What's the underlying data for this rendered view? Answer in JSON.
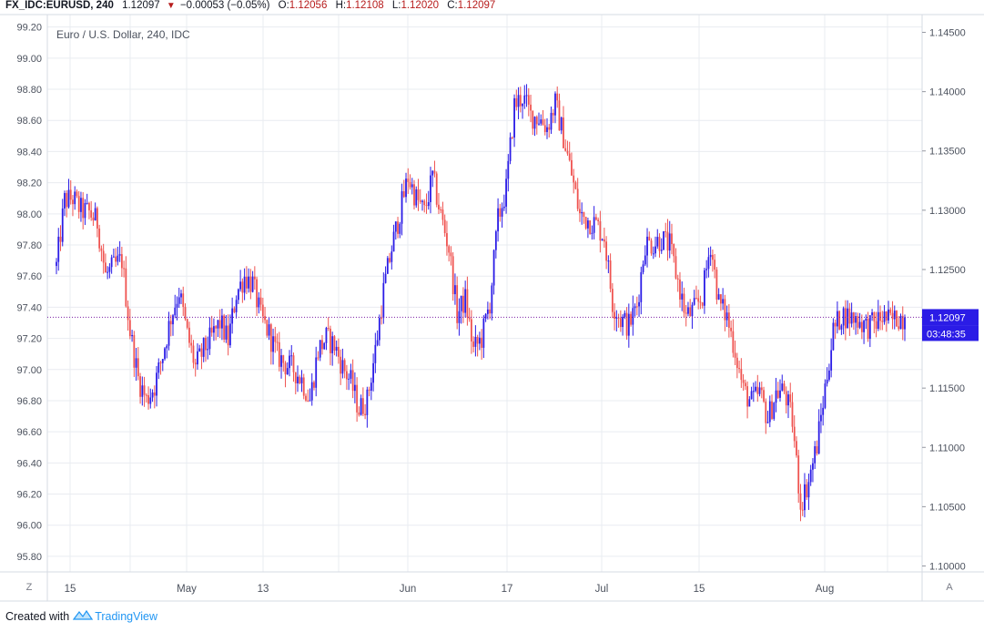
{
  "header": {
    "symbol": "FX_IDC:EURUSD, 240",
    "last": "1.12097",
    "arrow": "▼",
    "change": "−0.00053 (−0.05%)",
    "o_label": "O:",
    "o_value": "1.12056",
    "h_label": "H:",
    "h_value": "1.12108",
    "l_label": "L:",
    "l_value": "1.12020",
    "c_label": "C:",
    "c_value": "1.12097"
  },
  "footer": {
    "created_with": "Created with",
    "brand": "TradingView"
  },
  "buttons": {
    "zoom": "Z",
    "auto": "A"
  },
  "colors": {
    "up": "#2b1ce6",
    "down": "#ef5350",
    "price_line": "#7b1fa2",
    "label_bg": "#2b1ce6",
    "grid": "#e9ecf1"
  },
  "chart_data": {
    "type": "candlestick",
    "title": "Euro / U.S. Dollar, 240, IDC",
    "left_axis": {
      "ticks": [
        "99.20",
        "99.00",
        "98.80",
        "98.60",
        "98.40",
        "98.20",
        "98.00",
        "97.80",
        "97.60",
        "97.40",
        "97.20",
        "97.00",
        "96.80",
        "96.60",
        "96.40",
        "96.20",
        "96.00",
        "95.80"
      ],
      "range": [
        95.7,
        99.28
      ]
    },
    "right_axis": {
      "ticks": [
        "1.14500",
        "1.14000",
        "1.13500",
        "1.13000",
        "1.12500",
        "1.12000",
        "1.11500",
        "1.11000",
        "1.10500",
        "1.10000"
      ],
      "range": [
        1.0995,
        1.1465
      ]
    },
    "x_axis": {
      "labels": [
        "15",
        "May",
        "13",
        "Jun",
        "17",
        "Jul",
        "15",
        "Aug"
      ]
    },
    "grid": true,
    "price_label": "1.12097",
    "countdown_label": "03:48:35",
    "price_line_value": 1.12097,
    "price_path_anchors": [
      [
        0,
        1.1253
      ],
      [
        4,
        1.1308
      ],
      [
        8,
        1.131
      ],
      [
        12,
        1.13
      ],
      [
        16,
        1.1298
      ],
      [
        20,
        1.129
      ],
      [
        24,
        1.1245
      ],
      [
        28,
        1.1252
      ],
      [
        32,
        1.1258
      ],
      [
        36,
        1.1198
      ],
      [
        40,
        1.1158
      ],
      [
        44,
        1.114
      ],
      [
        48,
        1.1152
      ],
      [
        52,
        1.1178
      ],
      [
        56,
        1.121
      ],
      [
        60,
        1.1232
      ],
      [
        64,
        1.1195
      ],
      [
        68,
        1.1168
      ],
      [
        72,
        1.1182
      ],
      [
        76,
        1.1193
      ],
      [
        80,
        1.1205
      ],
      [
        84,
        1.119
      ],
      [
        88,
        1.123
      ],
      [
        92,
        1.1244
      ],
      [
        96,
        1.1238
      ],
      [
        100,
        1.121
      ],
      [
        104,
        1.1196
      ],
      [
        108,
        1.1178
      ],
      [
        112,
        1.117
      ],
      [
        116,
        1.1166
      ],
      [
        120,
        1.1157
      ],
      [
        124,
        1.114
      ],
      [
        128,
        1.1182
      ],
      [
        132,
        1.1192
      ],
      [
        136,
        1.1186
      ],
      [
        140,
        1.1168
      ],
      [
        144,
        1.1155
      ],
      [
        148,
        1.1132
      ],
      [
        152,
        1.114
      ],
      [
        156,
        1.1182
      ],
      [
        160,
        1.1232
      ],
      [
        164,
        1.1268
      ],
      [
        168,
        1.1298
      ],
      [
        172,
        1.1328
      ],
      [
        176,
        1.131
      ],
      [
        180,
        1.1298
      ],
      [
        184,
        1.1328
      ],
      [
        188,
        1.1296
      ],
      [
        192,
        1.1268
      ],
      [
        196,
        1.1212
      ],
      [
        200,
        1.1225
      ],
      [
        204,
        1.1182
      ],
      [
        208,
        1.1192
      ],
      [
        212,
        1.1222
      ],
      [
        216,
        1.1292
      ],
      [
        220,
        1.1318
      ],
      [
        224,
        1.1388
      ],
      [
        228,
        1.1396
      ],
      [
        232,
        1.138
      ],
      [
        236,
        1.1378
      ],
      [
        240,
        1.137
      ],
      [
        244,
        1.139
      ],
      [
        248,
        1.1362
      ],
      [
        252,
        1.133
      ],
      [
        256,
        1.1296
      ],
      [
        260,
        1.1292
      ],
      [
        264,
        1.1288
      ],
      [
        268,
        1.1278
      ],
      [
        272,
        1.1222
      ],
      [
        276,
        1.1208
      ],
      [
        280,
        1.1203
      ],
      [
        284,
        1.122
      ],
      [
        288,
        1.1272
      ],
      [
        292,
        1.1272
      ],
      [
        296,
        1.1276
      ],
      [
        300,
        1.127
      ],
      [
        304,
        1.124
      ],
      [
        308,
        1.121
      ],
      [
        312,
        1.1216
      ],
      [
        316,
        1.1228
      ],
      [
        320,
        1.1272
      ],
      [
        324,
        1.1222
      ],
      [
        328,
        1.121
      ],
      [
        332,
        1.1182
      ],
      [
        336,
        1.1148
      ],
      [
        340,
        1.1138
      ],
      [
        344,
        1.1146
      ],
      [
        348,
        1.1124
      ],
      [
        352,
        1.1146
      ],
      [
        356,
        1.1148
      ],
      [
        360,
        1.1122
      ],
      [
        364,
        1.1052
      ],
      [
        368,
        1.1072
      ],
      [
        372,
        1.1102
      ],
      [
        376,
        1.115
      ],
      [
        380,
        1.1198
      ],
      [
        384,
        1.1212
      ],
      [
        388,
        1.121
      ],
      [
        392,
        1.1208
      ],
      [
        396,
        1.1202
      ],
      [
        400,
        1.1204
      ],
      [
        404,
        1.121
      ],
      [
        408,
        1.1206
      ],
      [
        412,
        1.121
      ],
      [
        415,
        1.12097
      ]
    ]
  }
}
